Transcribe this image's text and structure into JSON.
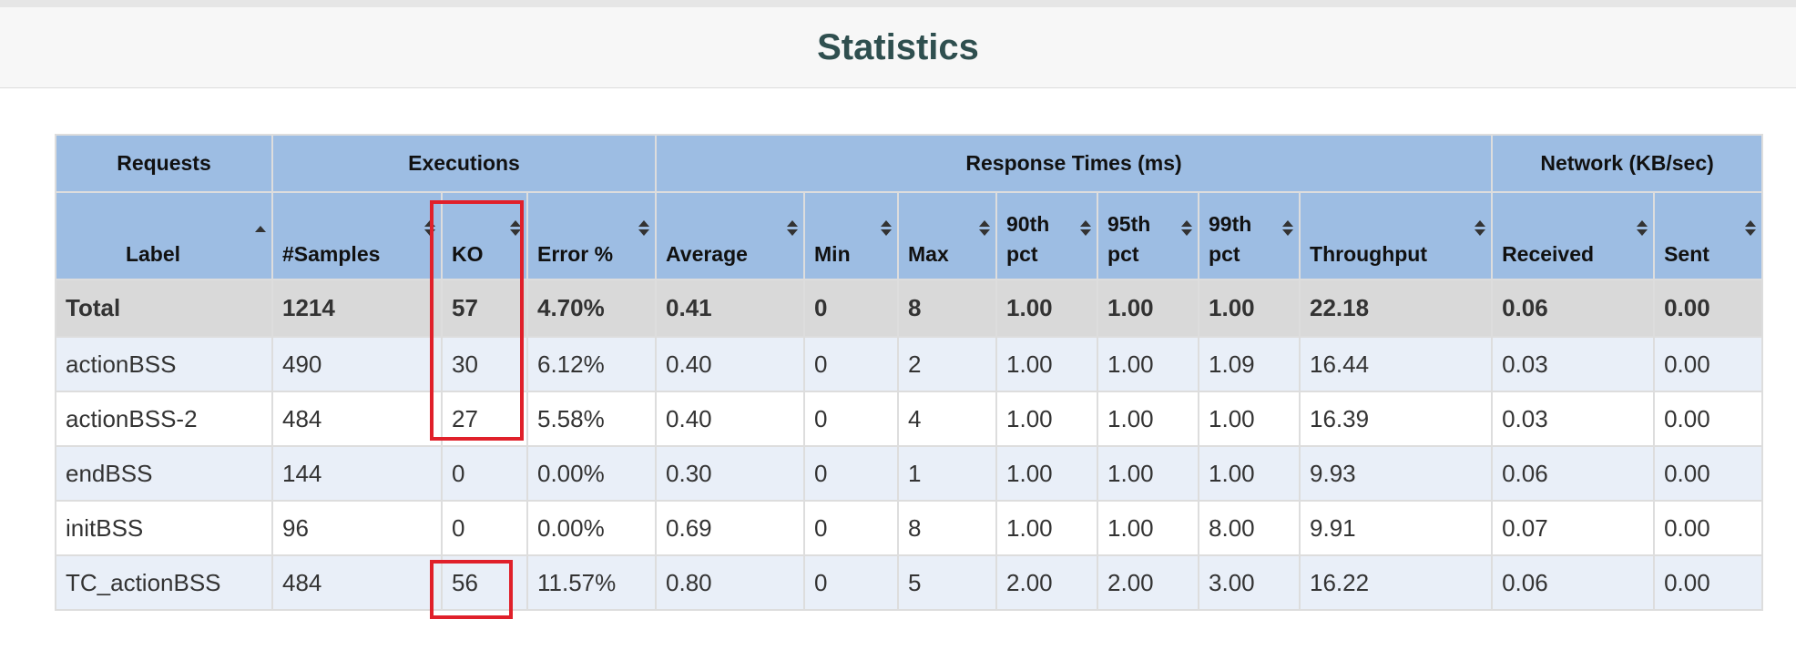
{
  "page": {
    "title": "Statistics"
  },
  "groups": [
    "Requests",
    "Executions",
    "Response Times (ms)",
    "Network (KB/sec)"
  ],
  "columns": [
    {
      "line1": "Label",
      "line2": "",
      "sort": "asc"
    },
    {
      "line1": "#Samples",
      "line2": "",
      "sort": "both"
    },
    {
      "line1": "KO",
      "line2": "",
      "sort": "both"
    },
    {
      "line1": "Error %",
      "line2": "",
      "sort": "both"
    },
    {
      "line1": "Average",
      "line2": "",
      "sort": "both"
    },
    {
      "line1": "Min",
      "line2": "",
      "sort": "both"
    },
    {
      "line1": "Max",
      "line2": "",
      "sort": "both"
    },
    {
      "line1": "90th",
      "line2": "pct",
      "sort": "both"
    },
    {
      "line1": "95th",
      "line2": "pct",
      "sort": "both"
    },
    {
      "line1": "99th",
      "line2": "pct",
      "sort": "both"
    },
    {
      "line1": "Throughput",
      "line2": "",
      "sort": "both"
    },
    {
      "line1": "Received",
      "line2": "",
      "sort": "both"
    },
    {
      "line1": "Sent",
      "line2": "",
      "sort": "both"
    }
  ],
  "total": [
    "Total",
    "1214",
    "57",
    "4.70%",
    "0.41",
    "0",
    "8",
    "1.00",
    "1.00",
    "1.00",
    "22.18",
    "0.06",
    "0.00"
  ],
  "rows": [
    [
      "actionBSS",
      "490",
      "30",
      "6.12%",
      "0.40",
      "0",
      "2",
      "1.00",
      "1.00",
      "1.09",
      "16.44",
      "0.03",
      "0.00"
    ],
    [
      "actionBSS-2",
      "484",
      "27",
      "5.58%",
      "0.40",
      "0",
      "4",
      "1.00",
      "1.00",
      "1.00",
      "16.39",
      "0.03",
      "0.00"
    ],
    [
      "endBSS",
      "144",
      "0",
      "0.00%",
      "0.30",
      "0",
      "1",
      "1.00",
      "1.00",
      "1.00",
      "9.93",
      "0.06",
      "0.00"
    ],
    [
      "initBSS",
      "96",
      "0",
      "0.00%",
      "0.69",
      "0",
      "8",
      "1.00",
      "1.00",
      "8.00",
      "9.91",
      "0.07",
      "0.00"
    ],
    [
      "TC_actionBSS",
      "484",
      "56",
      "11.57%",
      "0.80",
      "0",
      "5",
      "2.00",
      "2.00",
      "3.00",
      "16.22",
      "0.06",
      "0.00"
    ]
  ],
  "colors": {
    "header_bg": "#9dbde3",
    "total_bg": "#d9d9d9",
    "odd_row_bg": "#e9eff8",
    "highlight": "#e0202a",
    "title": "#2f4f4f"
  }
}
